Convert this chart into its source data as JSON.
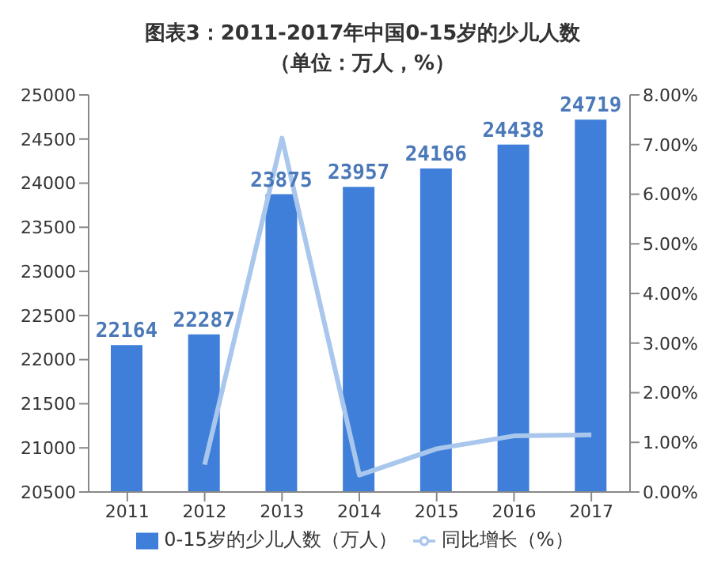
{
  "chart_data": {
    "type": "bar",
    "title": "图表3：2011-2017年中国0-15岁的少儿人数（单位：万人，%）",
    "categories": [
      "2011",
      "2012",
      "2013",
      "2014",
      "2015",
      "2016",
      "2017"
    ],
    "series": [
      {
        "name": "0-15岁的少儿人数（万人）",
        "color": "#3f7fd9",
        "values": [
          22164,
          22287,
          23875,
          23957,
          24166,
          24438,
          24719
        ],
        "value_labels": [
          "22164",
          "22287",
          "23875",
          "23957",
          "24166",
          "24438",
          "24719"
        ]
      },
      {
        "name": "同比增长（%）",
        "type": "line",
        "axis": "y2",
        "color": "#a9c6ec",
        "values": [
          null,
          0.55,
          7.13,
          0.34,
          0.87,
          1.13,
          1.15
        ]
      }
    ],
    "ylim": [
      20500,
      25000
    ],
    "yticks": [
      20500,
      21000,
      21500,
      22000,
      22500,
      23000,
      23500,
      24000,
      24500,
      25000
    ],
    "y2lim": [
      0,
      8
    ],
    "y2ticks": [
      {
        "value": 0,
        "label": "0.00%"
      },
      {
        "value": 1,
        "label": "1.00%"
      },
      {
        "value": 2,
        "label": "2.00%"
      },
      {
        "value": 3,
        "label": "3.00%"
      },
      {
        "value": 4,
        "label": "4.00%"
      },
      {
        "value": 5,
        "label": "5.00%"
      },
      {
        "value": 6,
        "label": "6.00%"
      },
      {
        "value": 7,
        "label": "7.00%"
      },
      {
        "value": 8,
        "label": "8.00%"
      }
    ],
    "grid": false,
    "legend": "bottom",
    "marker": "none"
  }
}
